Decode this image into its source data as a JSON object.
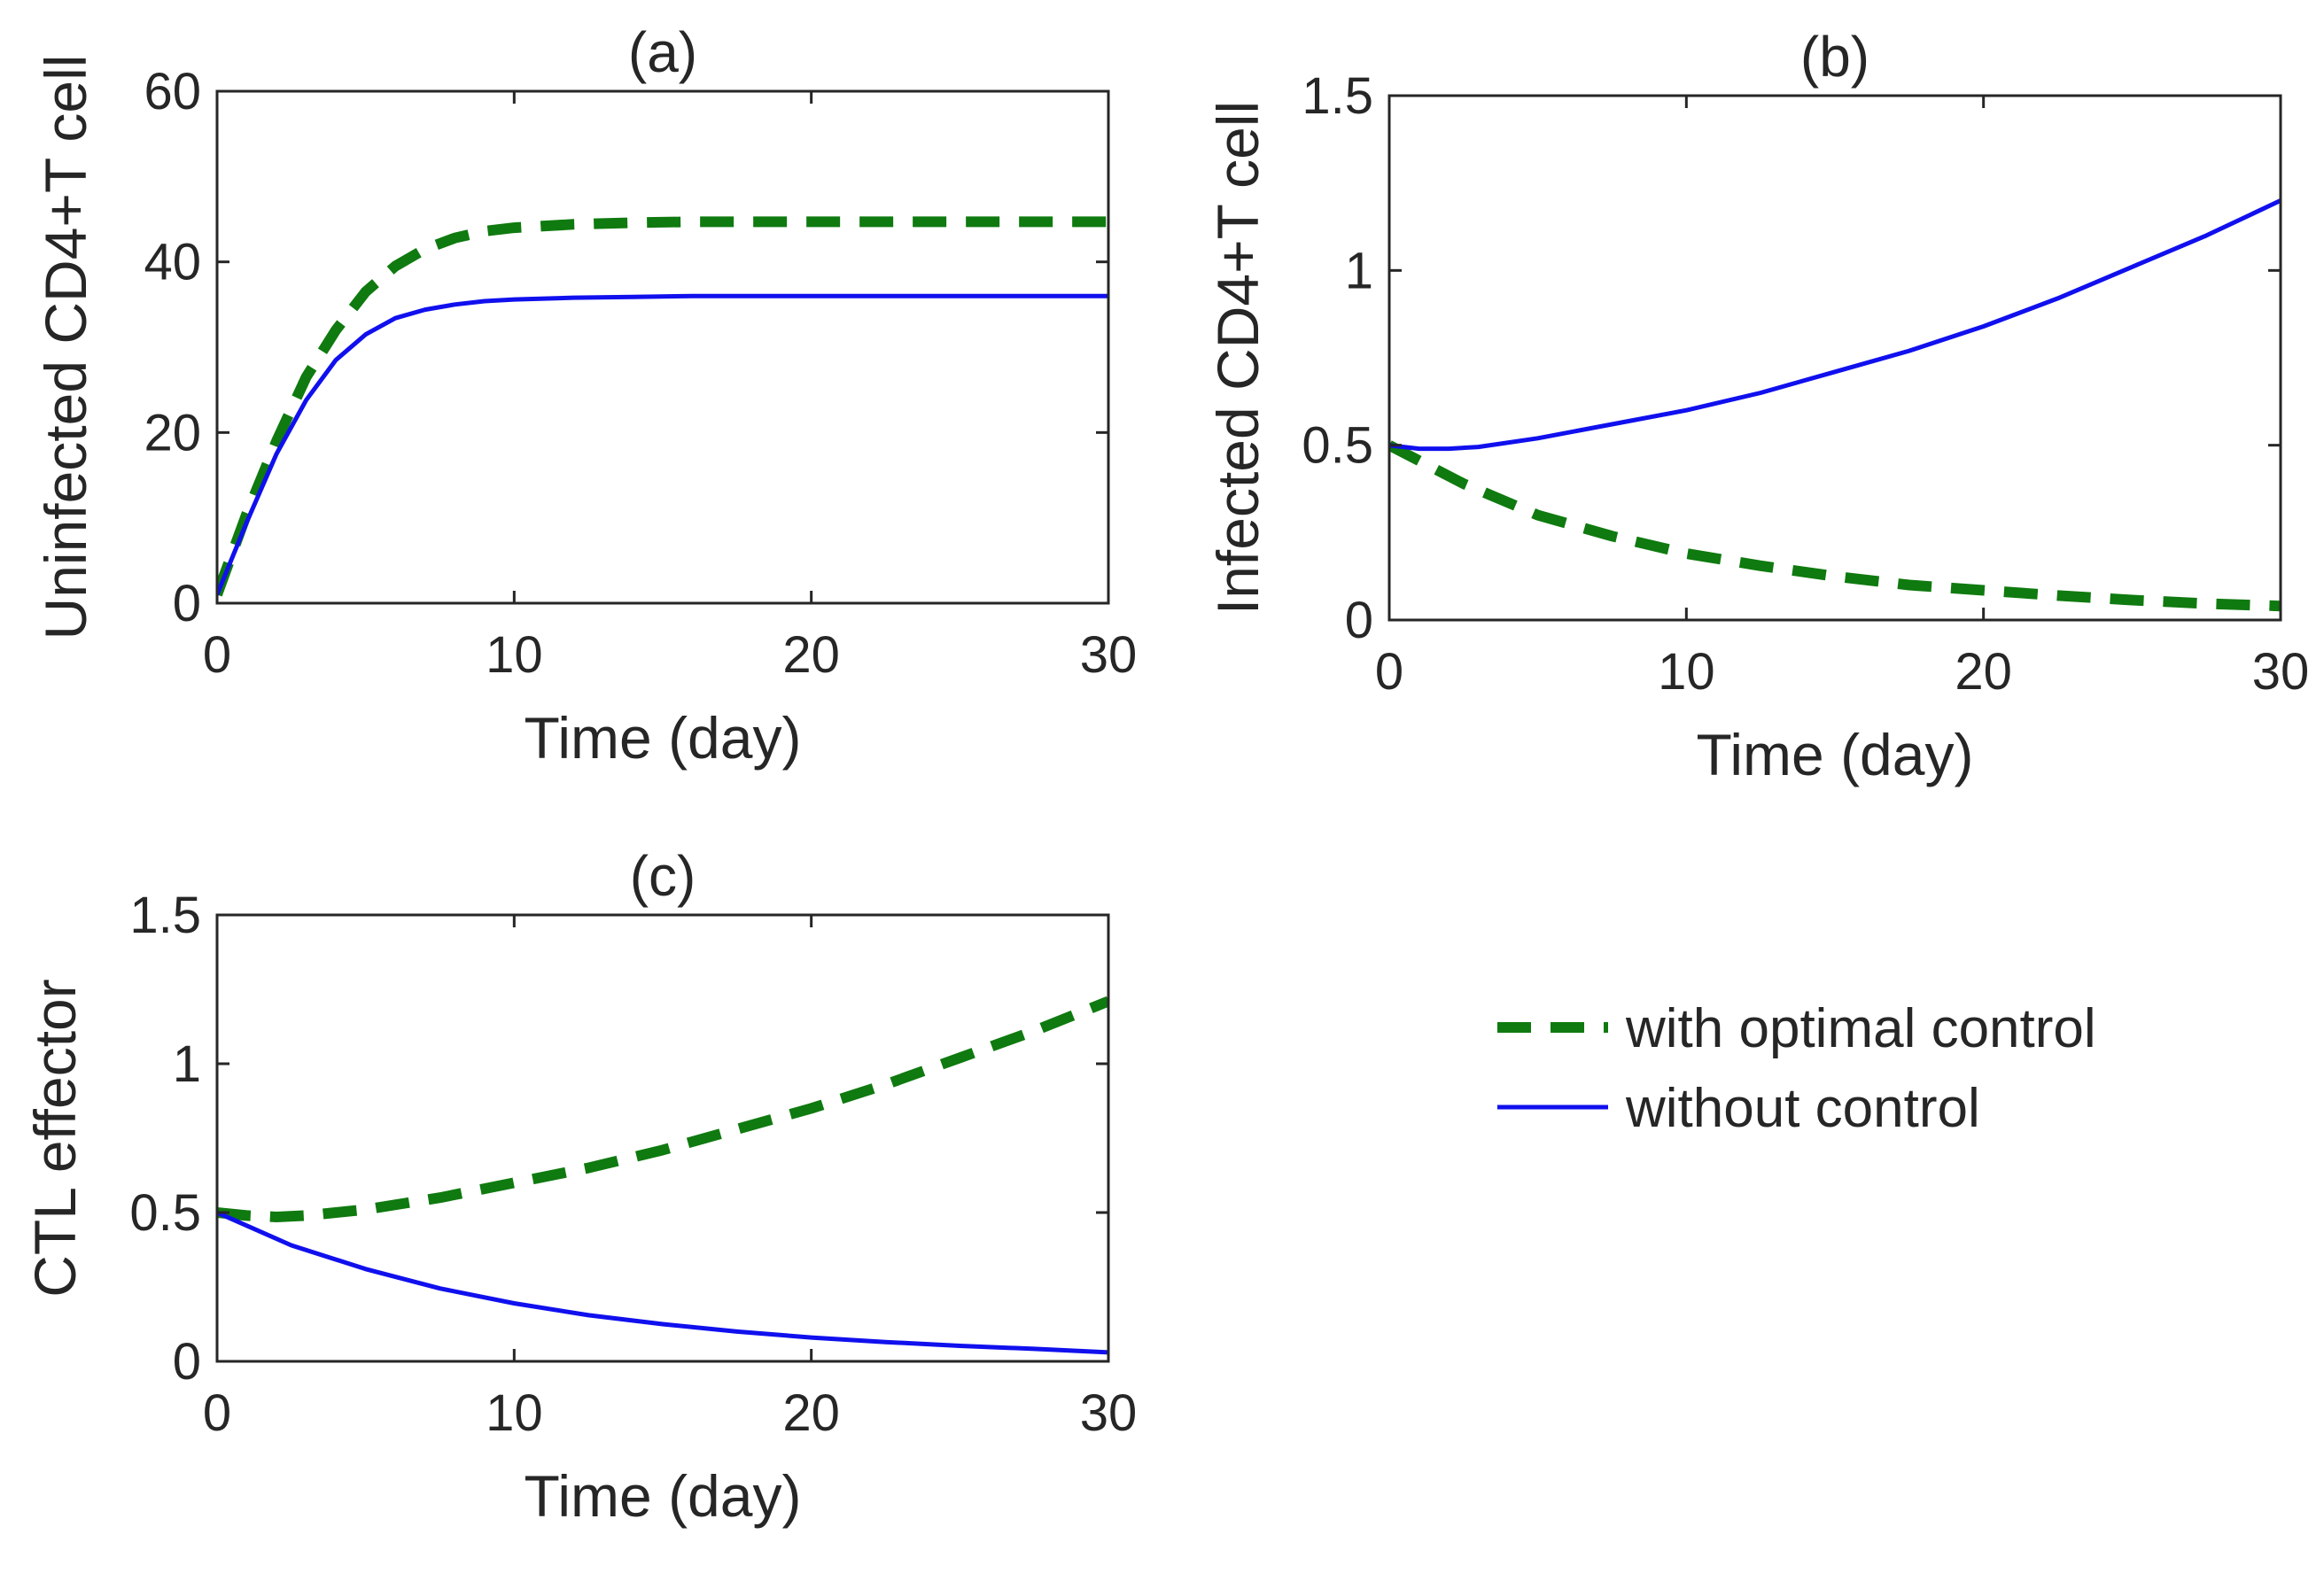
{
  "colors": {
    "with_control": "#0f7a0f",
    "without_control": "#1010ee",
    "axis": "#262626"
  },
  "legend": {
    "entries": [
      {
        "label": "with optimal control",
        "style": "dashed",
        "color_key": "with_control"
      },
      {
        "label": "without control",
        "style": "solid",
        "color_key": "without_control"
      }
    ],
    "placement": "lower-right"
  },
  "chart_data": [
    {
      "type": "line",
      "title": "(a)",
      "xlabel": "Time (day)",
      "ylabel": "Uninfected CD4+T cell",
      "xlim": [
        0,
        30
      ],
      "ylim": [
        0,
        60
      ],
      "xticks": [
        0,
        10,
        20,
        30
      ],
      "yticks": [
        0,
        20,
        40,
        60
      ],
      "grid": false,
      "series": [
        {
          "name": "with optimal control",
          "style": "dashed",
          "color_key": "with_control",
          "x": [
            0,
            1,
            2,
            3,
            4,
            5,
            6,
            7,
            8,
            9,
            10,
            12,
            14,
            16,
            18,
            20,
            25,
            30
          ],
          "y": [
            1,
            10.5,
            19,
            26.5,
            32,
            36.5,
            39.5,
            41.5,
            42.8,
            43.6,
            44,
            44.4,
            44.6,
            44.7,
            44.7,
            44.7,
            44.7,
            44.7
          ]
        },
        {
          "name": "without control",
          "style": "solid",
          "color_key": "without_control",
          "x": [
            0,
            1,
            2,
            3,
            4,
            5,
            6,
            7,
            8,
            9,
            10,
            12,
            14,
            16,
            18,
            20,
            25,
            30
          ],
          "y": [
            1,
            9.5,
            17.5,
            23.8,
            28.5,
            31.5,
            33.4,
            34.4,
            35,
            35.4,
            35.6,
            35.8,
            35.9,
            36,
            36,
            36,
            36,
            36
          ]
        }
      ]
    },
    {
      "type": "line",
      "title": "(b)",
      "xlabel": "Time (day)",
      "ylabel": "Infected CD4+T cell",
      "xlim": [
        0,
        30
      ],
      "ylim": [
        0,
        1.5
      ],
      "xticks": [
        0,
        10,
        20,
        30
      ],
      "yticks": [
        0,
        0.5,
        1,
        1.5
      ],
      "grid": false,
      "series": [
        {
          "name": "with optimal control",
          "style": "dashed",
          "color_key": "with_control",
          "x": [
            0,
            2.5,
            5,
            7.5,
            10,
            12.5,
            15,
            17.5,
            20,
            22.5,
            25,
            27.5,
            30
          ],
          "y": [
            0.5,
            0.39,
            0.3,
            0.24,
            0.19,
            0.155,
            0.125,
            0.1,
            0.085,
            0.07,
            0.057,
            0.047,
            0.04
          ]
        },
        {
          "name": "without control",
          "style": "solid",
          "color_key": "without_control",
          "x": [
            0,
            1,
            2,
            3,
            5,
            7.5,
            10,
            12.5,
            15,
            17.5,
            20,
            22.5,
            25,
            27.5,
            30
          ],
          "y": [
            0.5,
            0.49,
            0.49,
            0.495,
            0.52,
            0.56,
            0.6,
            0.65,
            0.71,
            0.77,
            0.84,
            0.92,
            1.01,
            1.1,
            1.2
          ]
        }
      ]
    },
    {
      "type": "line",
      "title": "(c)",
      "xlabel": "Time (day)",
      "ylabel": "CTL effector",
      "xlim": [
        0,
        30
      ],
      "ylim": [
        0,
        1.5
      ],
      "xticks": [
        0,
        10,
        20,
        30
      ],
      "yticks": [
        0,
        0.5,
        1,
        1.5
      ],
      "grid": false,
      "series": [
        {
          "name": "with optimal control",
          "style": "dashed",
          "color_key": "with_control",
          "x": [
            0,
            1,
            2,
            3,
            5,
            7.5,
            10,
            12.5,
            15,
            17.5,
            20,
            22.5,
            25,
            27.5,
            30
          ],
          "y": [
            0.5,
            0.49,
            0.485,
            0.49,
            0.51,
            0.55,
            0.6,
            0.65,
            0.71,
            0.78,
            0.85,
            0.93,
            1.02,
            1.11,
            1.21
          ]
        },
        {
          "name": "without control",
          "style": "solid",
          "color_key": "without_control",
          "x": [
            0,
            2.5,
            5,
            7.5,
            10,
            12.5,
            15,
            17.5,
            20,
            22.5,
            25,
            27.5,
            30
          ],
          "y": [
            0.5,
            0.39,
            0.31,
            0.245,
            0.195,
            0.155,
            0.125,
            0.1,
            0.08,
            0.065,
            0.052,
            0.042,
            0.03
          ]
        }
      ]
    }
  ]
}
